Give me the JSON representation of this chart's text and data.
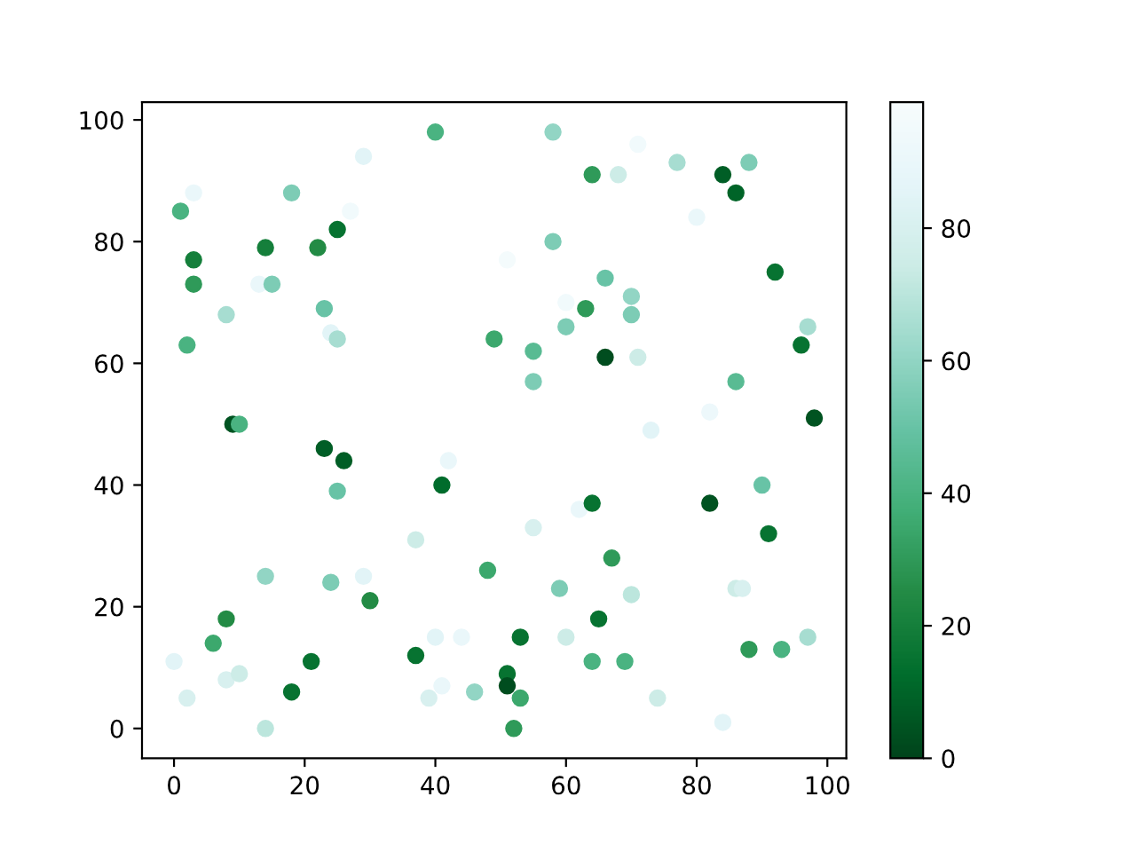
{
  "chart_data": {
    "type": "scatter",
    "marker": "circle",
    "x": [
      0,
      1,
      2,
      2,
      3,
      3,
      3,
      6,
      8,
      8,
      8,
      9,
      10,
      10,
      14,
      13,
      15,
      14,
      14,
      18,
      18,
      21,
      22,
      23,
      23,
      24,
      25,
      24,
      25,
      25,
      26,
      27,
      29,
      29,
      30,
      37,
      37,
      39,
      40,
      40,
      41,
      41,
      42,
      44,
      46,
      48,
      49,
      51,
      51,
      51,
      52,
      53,
      53,
      55,
      55,
      55,
      58,
      58,
      59,
      60,
      60,
      60,
      62,
      63,
      64,
      64,
      64,
      65,
      66,
      66,
      67,
      68,
      69,
      70,
      70,
      70,
      71,
      71,
      73,
      74,
      77,
      80,
      82,
      82,
      84,
      84,
      86,
      86,
      86,
      87,
      88,
      88,
      90,
      91,
      92,
      93,
      96,
      97,
      97,
      98
    ],
    "values": [
      11,
      85,
      63,
      5,
      88,
      77,
      73,
      14,
      18,
      68,
      8,
      50,
      50,
      9,
      79,
      73,
      73,
      25,
      0,
      88,
      6,
      11,
      79,
      69,
      46,
      65,
      64,
      24,
      82,
      39,
      44,
      85,
      94,
      25,
      21,
      31,
      12,
      5,
      98,
      15,
      40,
      7,
      44,
      15,
      6,
      26,
      64,
      9,
      77,
      7,
      0,
      15,
      5,
      62,
      57,
      33,
      98,
      80,
      23,
      66,
      70,
      15,
      36,
      69,
      91,
      37,
      11,
      18,
      61,
      74,
      28,
      91,
      11,
      71,
      68,
      22,
      96,
      61,
      49,
      5,
      93,
      84,
      52,
      37,
      91,
      1,
      88,
      57,
      23,
      23,
      93,
      13,
      40,
      32,
      75,
      13,
      63,
      15,
      66,
      51
    ],
    "cvalues": [
      85,
      40,
      40,
      80,
      90,
      20,
      30,
      35,
      25,
      65,
      80,
      5,
      40,
      75,
      20,
      90,
      55,
      60,
      70,
      55,
      15,
      15,
      25,
      50,
      8,
      85,
      65,
      55,
      15,
      50,
      8,
      95,
      85,
      85,
      25,
      75,
      15,
      80,
      40,
      85,
      12,
      90,
      90,
      90,
      60,
      35,
      35,
      15,
      97,
      3,
      30,
      15,
      35,
      45,
      55,
      80,
      60,
      55,
      55,
      55,
      95,
      75,
      90,
      30,
      30,
      15,
      40,
      15,
      3,
      50,
      30,
      75,
      40,
      60,
      55,
      70,
      95,
      75,
      85,
      75,
      65,
      90,
      92,
      5,
      8,
      85,
      10,
      45,
      75,
      80,
      55,
      30,
      50,
      15,
      15,
      40,
      15,
      65,
      65,
      5
    ],
    "xlim": [
      -4.9,
      102.9
    ],
    "ylim": [
      -4.9,
      102.9
    ],
    "xticks": [
      0,
      20,
      40,
      60,
      80,
      100
    ],
    "yticks": [
      0,
      20,
      40,
      60,
      80,
      100
    ],
    "clim": [
      0,
      99
    ],
    "cticks": [
      0,
      20,
      40,
      60,
      80
    ]
  }
}
